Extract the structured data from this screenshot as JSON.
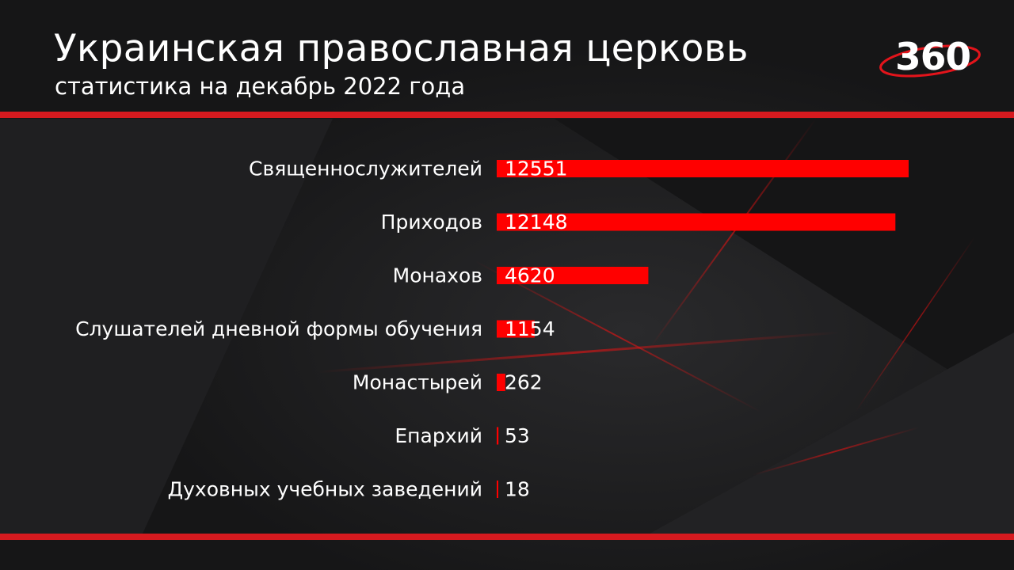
{
  "header": {
    "title": "Украинская православная церковь",
    "subtitle": "статистика на декабрь 2022 года",
    "logo_text": "360"
  },
  "colors": {
    "background": "#1b1b1c",
    "bar": "#ff0000",
    "rule": "#d61a1f",
    "text": "#ffffff"
  },
  "chart_data": {
    "type": "bar",
    "orientation": "horizontal",
    "categories": [
      "Священнослужителей",
      "Приходов",
      "Монахов",
      "Слушателей дневной формы обучения",
      "Монастырей",
      "Епархий",
      "Духовных учебных заведений"
    ],
    "values": [
      12551,
      12148,
      4620,
      1154,
      262,
      53,
      18
    ],
    "value_labels": [
      "12551",
      "12148",
      "4620",
      "1154",
      "262",
      "53",
      "18"
    ],
    "xlim": [
      0,
      12551
    ],
    "grid": false,
    "legend": "none"
  }
}
